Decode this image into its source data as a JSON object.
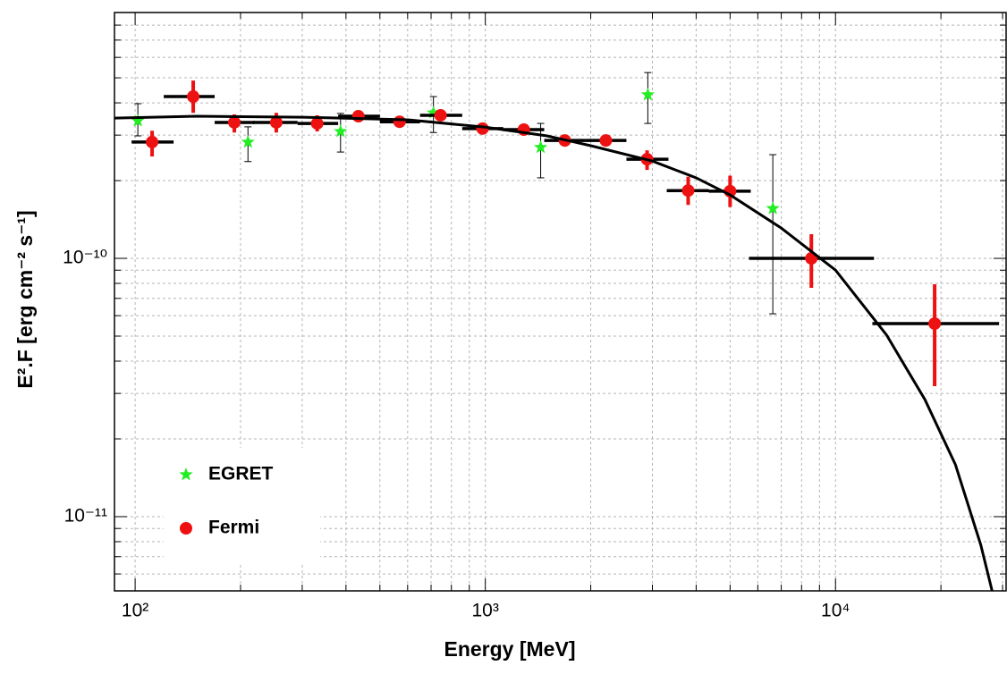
{
  "chart_data": {
    "type": "scatter",
    "xlabel": "Energy [MeV]",
    "ylabel": "E².F [erg cm⁻² s⁻¹]",
    "xscale": "log",
    "yscale": "log",
    "grid": true,
    "legend": "lower left",
    "xlim": [
      87.3,
      30700
    ],
    "ylim": [
      5.16e-12,
      8.95e-10
    ],
    "xticks": [
      {
        "value": 100,
        "label": "10²"
      },
      {
        "value": 1000,
        "label": "10³"
      },
      {
        "value": 10000,
        "label": "10⁴"
      }
    ],
    "xminorticks": [
      200,
      300,
      400,
      500,
      600,
      700,
      800,
      900,
      2000,
      3000,
      4000,
      5000,
      6000,
      7000,
      8000,
      9000,
      20000,
      30000
    ],
    "yticks": [
      {
        "value": 1e-11,
        "label": "10⁻¹¹"
      },
      {
        "value": 1e-10,
        "label": "10⁻¹⁰"
      }
    ],
    "yminorticks": [
      6e-12,
      7e-12,
      8e-12,
      9e-12,
      2e-11,
      3e-11,
      4e-11,
      5e-11,
      6e-11,
      7e-11,
      8e-11,
      9e-11,
      2e-10,
      3e-10,
      4e-10,
      5e-10,
      6e-10,
      7e-10,
      8e-10
    ],
    "series": [
      {
        "name": "EGRET",
        "color": "#22ee22",
        "marker": "star",
        "x": [
          101.8,
          210,
          386,
          711,
          1439,
          2911,
          6622
        ],
        "values": [
          3.41e-10,
          2.82e-10,
          3.1e-10,
          3.66e-10,
          2.69e-10,
          4.3e-10,
          1.56e-10
        ],
        "y_lo": [
          2.98e-10,
          2.37e-10,
          2.58e-10,
          3.07e-10,
          2.05e-10,
          3.33e-10,
          6.1e-11
        ],
        "y_hi": [
          3.97e-10,
          3.23e-10,
          3.64e-10,
          4.23e-10,
          3.33e-10,
          5.24e-10,
          2.52e-10
        ]
      },
      {
        "name": "Fermi",
        "color": "#ee1111",
        "marker": "circle",
        "x": [
          111.8,
          146.5,
          192,
          253,
          331,
          434,
          569,
          745,
          982,
          1288,
          1687,
          2209,
          2897,
          3795,
          5000,
          8531,
          19190
        ],
        "values": [
          2.82e-10,
          4.23e-10,
          3.36e-10,
          3.36e-10,
          3.33e-10,
          3.55e-10,
          3.38e-10,
          3.58e-10,
          3.18e-10,
          3.15e-10,
          2.86e-10,
          2.86e-10,
          2.42e-10,
          1.83e-10,
          1.82e-10,
          1e-10,
          5.59e-11
        ],
        "x_lo": [
          97.7,
          120.7,
          168.7,
          217,
          291,
          380,
          500,
          651,
          859,
          1125,
          1473,
          1931,
          2529,
          3297,
          4345,
          5662,
          12740
        ],
        "x_hi": [
          128.8,
          168.7,
          219.8,
          291,
          380,
          500,
          651,
          859,
          1125,
          1473,
          1931,
          2529,
          3334,
          4345,
          5728,
          12880,
          29310
        ],
        "y_lo": [
          2.48e-10,
          3.66e-10,
          3.07e-10,
          3.07e-10,
          3.1e-10,
          3.4e-10,
          3.25e-10,
          3.42e-10,
          3.05e-10,
          3.02e-10,
          2.74e-10,
          2.74e-10,
          2.2e-10,
          1.61e-10,
          1.58e-10,
          7.69e-11,
          3.2e-11
        ],
        "y_hi": [
          3.12e-10,
          4.88e-10,
          3.61e-10,
          3.66e-10,
          3.58e-10,
          3.7e-10,
          3.51e-10,
          3.74e-10,
          3.31e-10,
          3.28e-10,
          2.98e-10,
          2.98e-10,
          2.62e-10,
          2.07e-10,
          2.09e-10,
          1.24e-10,
          7.94e-11
        ]
      },
      {
        "color": "#000000",
        "marker": "line",
        "x": [
          87.3,
          150,
          300,
          600,
          1000,
          1500,
          2000,
          3000,
          4000,
          5000,
          7000,
          10000,
          14000,
          18000,
          22000,
          26000,
          28000
        ],
        "values": [
          3.49e-10,
          3.55e-10,
          3.52e-10,
          3.44e-10,
          3.22e-10,
          2.98e-10,
          2.73e-10,
          2.38e-10,
          2.05e-10,
          1.76e-10,
          1.31e-10,
          9e-11,
          5.04e-11,
          2.84e-11,
          1.59e-11,
          7.76e-12,
          5.16e-12
        ]
      }
    ]
  }
}
